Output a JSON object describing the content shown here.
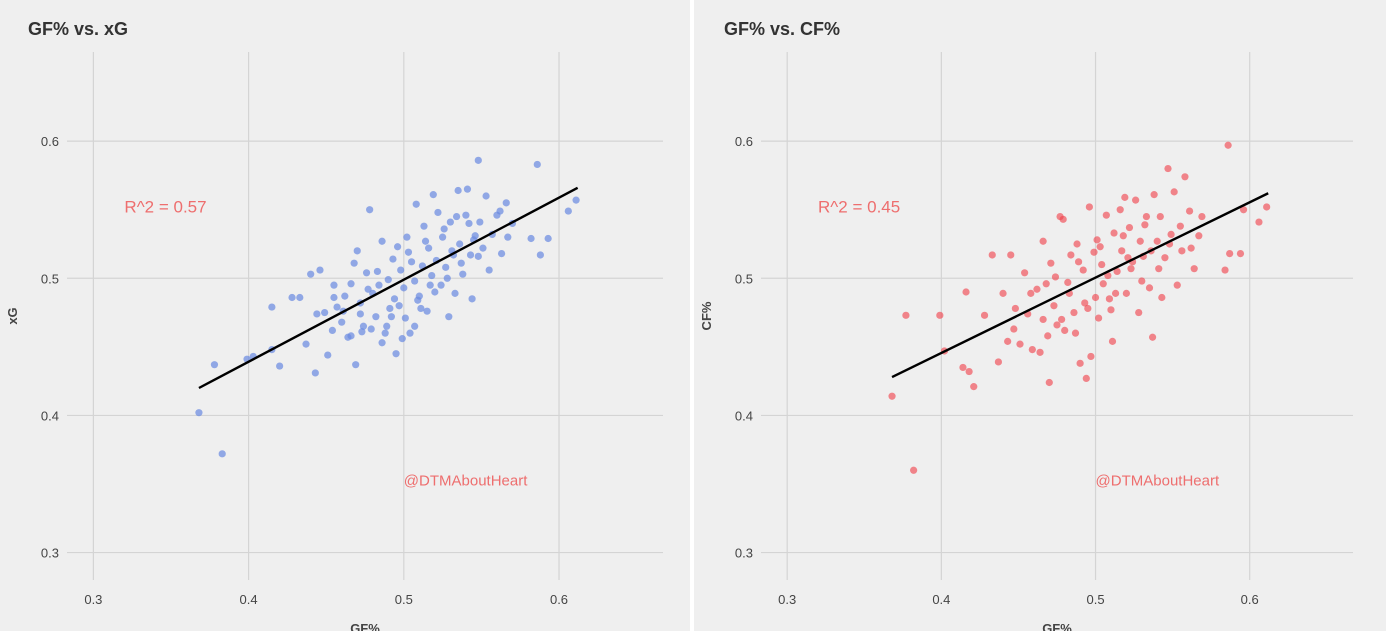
{
  "chart_data": [
    {
      "type": "scatter",
      "title": "GF% vs. xG",
      "xlabel": "GF%",
      "ylabel": "xG",
      "xlim": [
        0.283,
        0.667
      ],
      "ylim": [
        0.28,
        0.665
      ],
      "xticks": [
        0.3,
        0.4,
        0.5,
        0.6
      ],
      "yticks": [
        0.3,
        0.4,
        0.5,
        0.6
      ],
      "xtick_labels": [
        "0.3",
        "0.4",
        "0.5",
        "0.6"
      ],
      "ytick_labels": [
        "0.3",
        "0.4",
        "0.5",
        "0.6"
      ],
      "grid": true,
      "point_color": "#6b8be0",
      "annotation": "R^2 = 0.57",
      "annotation_pos": [
        0.32,
        0.548
      ],
      "watermark": "@DTMAboutHeart",
      "watermark_pos": [
        0.5,
        0.349
      ],
      "trendline": {
        "x": [
          0.368,
          0.612
        ],
        "y": [
          0.42,
          0.566
        ]
      },
      "points": [
        {
          "x": 0.368,
          "y": 0.402
        },
        {
          "x": 0.383,
          "y": 0.372
        },
        {
          "x": 0.378,
          "y": 0.437
        },
        {
          "x": 0.399,
          "y": 0.441
        },
        {
          "x": 0.403,
          "y": 0.443
        },
        {
          "x": 0.415,
          "y": 0.448
        },
        {
          "x": 0.42,
          "y": 0.436
        },
        {
          "x": 0.415,
          "y": 0.479
        },
        {
          "x": 0.428,
          "y": 0.486
        },
        {
          "x": 0.433,
          "y": 0.486
        },
        {
          "x": 0.437,
          "y": 0.452
        },
        {
          "x": 0.44,
          "y": 0.503
        },
        {
          "x": 0.443,
          "y": 0.431
        },
        {
          "x": 0.446,
          "y": 0.506
        },
        {
          "x": 0.444,
          "y": 0.474
        },
        {
          "x": 0.449,
          "y": 0.475
        },
        {
          "x": 0.451,
          "y": 0.444
        },
        {
          "x": 0.455,
          "y": 0.495
        },
        {
          "x": 0.457,
          "y": 0.479
        },
        {
          "x": 0.46,
          "y": 0.468
        },
        {
          "x": 0.462,
          "y": 0.487
        },
        {
          "x": 0.464,
          "y": 0.457
        },
        {
          "x": 0.466,
          "y": 0.496
        },
        {
          "x": 0.468,
          "y": 0.511
        },
        {
          "x": 0.469,
          "y": 0.437
        },
        {
          "x": 0.47,
          "y": 0.52
        },
        {
          "x": 0.472,
          "y": 0.482
        },
        {
          "x": 0.474,
          "y": 0.465
        },
        {
          "x": 0.476,
          "y": 0.504
        },
        {
          "x": 0.478,
          "y": 0.55
        },
        {
          "x": 0.479,
          "y": 0.463
        },
        {
          "x": 0.48,
          "y": 0.489
        },
        {
          "x": 0.482,
          "y": 0.472
        },
        {
          "x": 0.484,
          "y": 0.495
        },
        {
          "x": 0.486,
          "y": 0.527
        },
        {
          "x": 0.488,
          "y": 0.46
        },
        {
          "x": 0.49,
          "y": 0.499
        },
        {
          "x": 0.491,
          "y": 0.478
        },
        {
          "x": 0.493,
          "y": 0.514
        },
        {
          "x": 0.494,
          "y": 0.485
        },
        {
          "x": 0.495,
          "y": 0.445
        },
        {
          "x": 0.496,
          "y": 0.523
        },
        {
          "x": 0.498,
          "y": 0.506
        },
        {
          "x": 0.5,
          "y": 0.493
        },
        {
          "x": 0.501,
          "y": 0.471
        },
        {
          "x": 0.502,
          "y": 0.53
        },
        {
          "x": 0.504,
          "y": 0.46
        },
        {
          "x": 0.505,
          "y": 0.512
        },
        {
          "x": 0.507,
          "y": 0.498
        },
        {
          "x": 0.508,
          "y": 0.554
        },
        {
          "x": 0.51,
          "y": 0.487
        },
        {
          "x": 0.512,
          "y": 0.509
        },
        {
          "x": 0.513,
          "y": 0.538
        },
        {
          "x": 0.515,
          "y": 0.476
        },
        {
          "x": 0.516,
          "y": 0.522
        },
        {
          "x": 0.518,
          "y": 0.502
        },
        {
          "x": 0.519,
          "y": 0.561
        },
        {
          "x": 0.521,
          "y": 0.513
        },
        {
          "x": 0.522,
          "y": 0.548
        },
        {
          "x": 0.524,
          "y": 0.495
        },
        {
          "x": 0.525,
          "y": 0.53
        },
        {
          "x": 0.527,
          "y": 0.508
        },
        {
          "x": 0.529,
          "y": 0.472
        },
        {
          "x": 0.53,
          "y": 0.541
        },
        {
          "x": 0.532,
          "y": 0.517
        },
        {
          "x": 0.533,
          "y": 0.489
        },
        {
          "x": 0.535,
          "y": 0.564
        },
        {
          "x": 0.536,
          "y": 0.525
        },
        {
          "x": 0.538,
          "y": 0.503
        },
        {
          "x": 0.54,
          "y": 0.546
        },
        {
          "x": 0.541,
          "y": 0.565
        },
        {
          "x": 0.543,
          "y": 0.517
        },
        {
          "x": 0.544,
          "y": 0.485
        },
        {
          "x": 0.546,
          "y": 0.531
        },
        {
          "x": 0.548,
          "y": 0.586
        },
        {
          "x": 0.549,
          "y": 0.541
        },
        {
          "x": 0.551,
          "y": 0.522
        },
        {
          "x": 0.553,
          "y": 0.56
        },
        {
          "x": 0.555,
          "y": 0.506
        },
        {
          "x": 0.557,
          "y": 0.532
        },
        {
          "x": 0.56,
          "y": 0.546
        },
        {
          "x": 0.563,
          "y": 0.518
        },
        {
          "x": 0.566,
          "y": 0.555
        },
        {
          "x": 0.57,
          "y": 0.54
        },
        {
          "x": 0.582,
          "y": 0.529
        },
        {
          "x": 0.586,
          "y": 0.583
        },
        {
          "x": 0.588,
          "y": 0.517
        },
        {
          "x": 0.593,
          "y": 0.529
        },
        {
          "x": 0.606,
          "y": 0.549
        },
        {
          "x": 0.611,
          "y": 0.557
        },
        {
          "x": 0.466,
          "y": 0.458
        },
        {
          "x": 0.473,
          "y": 0.461
        },
        {
          "x": 0.486,
          "y": 0.453
        },
        {
          "x": 0.492,
          "y": 0.472
        },
        {
          "x": 0.507,
          "y": 0.465
        },
        {
          "x": 0.511,
          "y": 0.478
        },
        {
          "x": 0.52,
          "y": 0.49
        },
        {
          "x": 0.528,
          "y": 0.5
        },
        {
          "x": 0.537,
          "y": 0.511
        },
        {
          "x": 0.548,
          "y": 0.516
        },
        {
          "x": 0.454,
          "y": 0.462
        },
        {
          "x": 0.461,
          "y": 0.476
        },
        {
          "x": 0.477,
          "y": 0.492
        },
        {
          "x": 0.483,
          "y": 0.505
        },
        {
          "x": 0.497,
          "y": 0.48
        },
        {
          "x": 0.503,
          "y": 0.519
        },
        {
          "x": 0.514,
          "y": 0.527
        },
        {
          "x": 0.526,
          "y": 0.536
        },
        {
          "x": 0.534,
          "y": 0.545
        },
        {
          "x": 0.542,
          "y": 0.54
        },
        {
          "x": 0.562,
          "y": 0.549
        },
        {
          "x": 0.567,
          "y": 0.53
        },
        {
          "x": 0.455,
          "y": 0.486
        },
        {
          "x": 0.472,
          "y": 0.474
        },
        {
          "x": 0.489,
          "y": 0.465
        },
        {
          "x": 0.499,
          "y": 0.456
        },
        {
          "x": 0.509,
          "y": 0.484
        },
        {
          "x": 0.517,
          "y": 0.495
        },
        {
          "x": 0.531,
          "y": 0.52
        },
        {
          "x": 0.545,
          "y": 0.528
        }
      ]
    },
    {
      "type": "scatter",
      "title": "GF% vs. CF%",
      "xlabel": "GF%",
      "ylabel": "CF%",
      "xlim": [
        0.283,
        0.667
      ],
      "ylim": [
        0.28,
        0.665
      ],
      "xticks": [
        0.3,
        0.4,
        0.5,
        0.6
      ],
      "yticks": [
        0.3,
        0.4,
        0.5,
        0.6
      ],
      "xtick_labels": [
        "0.3",
        "0.4",
        "0.5",
        "0.6"
      ],
      "ytick_labels": [
        "0.3",
        "0.4",
        "0.5",
        "0.6"
      ],
      "grid": true,
      "point_color": "#f0404a",
      "annotation": "R^2 = 0.45",
      "annotation_pos": [
        0.32,
        0.548
      ],
      "watermark": "@DTMAboutHeart",
      "watermark_pos": [
        0.5,
        0.349
      ],
      "trendline": {
        "x": [
          0.368,
          0.612
        ],
        "y": [
          0.428,
          0.562
        ]
      },
      "points": [
        {
          "x": 0.368,
          "y": 0.414
        },
        {
          "x": 0.382,
          "y": 0.36
        },
        {
          "x": 0.377,
          "y": 0.473
        },
        {
          "x": 0.399,
          "y": 0.473
        },
        {
          "x": 0.402,
          "y": 0.447
        },
        {
          "x": 0.414,
          "y": 0.435
        },
        {
          "x": 0.418,
          "y": 0.432
        },
        {
          "x": 0.416,
          "y": 0.49
        },
        {
          "x": 0.421,
          "y": 0.421
        },
        {
          "x": 0.428,
          "y": 0.473
        },
        {
          "x": 0.433,
          "y": 0.517
        },
        {
          "x": 0.437,
          "y": 0.439
        },
        {
          "x": 0.44,
          "y": 0.489
        },
        {
          "x": 0.443,
          "y": 0.454
        },
        {
          "x": 0.445,
          "y": 0.517
        },
        {
          "x": 0.448,
          "y": 0.478
        },
        {
          "x": 0.451,
          "y": 0.452
        },
        {
          "x": 0.454,
          "y": 0.504
        },
        {
          "x": 0.456,
          "y": 0.474
        },
        {
          "x": 0.459,
          "y": 0.448
        },
        {
          "x": 0.462,
          "y": 0.492
        },
        {
          "x": 0.464,
          "y": 0.446
        },
        {
          "x": 0.466,
          "y": 0.527
        },
        {
          "x": 0.468,
          "y": 0.496
        },
        {
          "x": 0.47,
          "y": 0.424
        },
        {
          "x": 0.471,
          "y": 0.511
        },
        {
          "x": 0.473,
          "y": 0.48
        },
        {
          "x": 0.475,
          "y": 0.466
        },
        {
          "x": 0.477,
          "y": 0.545
        },
        {
          "x": 0.479,
          "y": 0.543
        },
        {
          "x": 0.48,
          "y": 0.462
        },
        {
          "x": 0.482,
          "y": 0.497
        },
        {
          "x": 0.484,
          "y": 0.517
        },
        {
          "x": 0.486,
          "y": 0.475
        },
        {
          "x": 0.488,
          "y": 0.525
        },
        {
          "x": 0.49,
          "y": 0.438
        },
        {
          "x": 0.492,
          "y": 0.506
        },
        {
          "x": 0.493,
          "y": 0.482
        },
        {
          "x": 0.494,
          "y": 0.427
        },
        {
          "x": 0.496,
          "y": 0.552
        },
        {
          "x": 0.497,
          "y": 0.443
        },
        {
          "x": 0.499,
          "y": 0.519
        },
        {
          "x": 0.501,
          "y": 0.528
        },
        {
          "x": 0.502,
          "y": 0.471
        },
        {
          "x": 0.504,
          "y": 0.51
        },
        {
          "x": 0.505,
          "y": 0.496
        },
        {
          "x": 0.507,
          "y": 0.546
        },
        {
          "x": 0.509,
          "y": 0.485
        },
        {
          "x": 0.511,
          "y": 0.454
        },
        {
          "x": 0.512,
          "y": 0.533
        },
        {
          "x": 0.514,
          "y": 0.505
        },
        {
          "x": 0.516,
          "y": 0.55
        },
        {
          "x": 0.517,
          "y": 0.52
        },
        {
          "x": 0.519,
          "y": 0.559
        },
        {
          "x": 0.52,
          "y": 0.489
        },
        {
          "x": 0.522,
          "y": 0.537
        },
        {
          "x": 0.524,
          "y": 0.512
        },
        {
          "x": 0.526,
          "y": 0.557
        },
        {
          "x": 0.528,
          "y": 0.475
        },
        {
          "x": 0.529,
          "y": 0.527
        },
        {
          "x": 0.531,
          "y": 0.516
        },
        {
          "x": 0.533,
          "y": 0.545
        },
        {
          "x": 0.535,
          "y": 0.493
        },
        {
          "x": 0.537,
          "y": 0.457
        },
        {
          "x": 0.538,
          "y": 0.561
        },
        {
          "x": 0.54,
          "y": 0.527
        },
        {
          "x": 0.542,
          "y": 0.545
        },
        {
          "x": 0.543,
          "y": 0.486
        },
        {
          "x": 0.545,
          "y": 0.515
        },
        {
          "x": 0.547,
          "y": 0.58
        },
        {
          "x": 0.549,
          "y": 0.532
        },
        {
          "x": 0.551,
          "y": 0.563
        },
        {
          "x": 0.553,
          "y": 0.495
        },
        {
          "x": 0.556,
          "y": 0.52
        },
        {
          "x": 0.558,
          "y": 0.574
        },
        {
          "x": 0.561,
          "y": 0.549
        },
        {
          "x": 0.564,
          "y": 0.507
        },
        {
          "x": 0.567,
          "y": 0.531
        },
        {
          "x": 0.569,
          "y": 0.545
        },
        {
          "x": 0.584,
          "y": 0.506
        },
        {
          "x": 0.586,
          "y": 0.597
        },
        {
          "x": 0.587,
          "y": 0.518
        },
        {
          "x": 0.594,
          "y": 0.518
        },
        {
          "x": 0.596,
          "y": 0.55
        },
        {
          "x": 0.606,
          "y": 0.541
        },
        {
          "x": 0.611,
          "y": 0.552
        },
        {
          "x": 0.458,
          "y": 0.489
        },
        {
          "x": 0.466,
          "y": 0.47
        },
        {
          "x": 0.474,
          "y": 0.501
        },
        {
          "x": 0.483,
          "y": 0.489
        },
        {
          "x": 0.489,
          "y": 0.512
        },
        {
          "x": 0.495,
          "y": 0.478
        },
        {
          "x": 0.503,
          "y": 0.523
        },
        {
          "x": 0.508,
          "y": 0.502
        },
        {
          "x": 0.513,
          "y": 0.489
        },
        {
          "x": 0.518,
          "y": 0.531
        },
        {
          "x": 0.523,
          "y": 0.507
        },
        {
          "x": 0.53,
          "y": 0.498
        },
        {
          "x": 0.536,
          "y": 0.52
        },
        {
          "x": 0.541,
          "y": 0.507
        },
        {
          "x": 0.548,
          "y": 0.525
        },
        {
          "x": 0.555,
          "y": 0.538
        },
        {
          "x": 0.562,
          "y": 0.522
        },
        {
          "x": 0.447,
          "y": 0.463
        },
        {
          "x": 0.469,
          "y": 0.458
        },
        {
          "x": 0.478,
          "y": 0.47
        },
        {
          "x": 0.487,
          "y": 0.46
        },
        {
          "x": 0.5,
          "y": 0.486
        },
        {
          "x": 0.51,
          "y": 0.477
        },
        {
          "x": 0.521,
          "y": 0.515
        },
        {
          "x": 0.532,
          "y": 0.539
        }
      ]
    }
  ]
}
